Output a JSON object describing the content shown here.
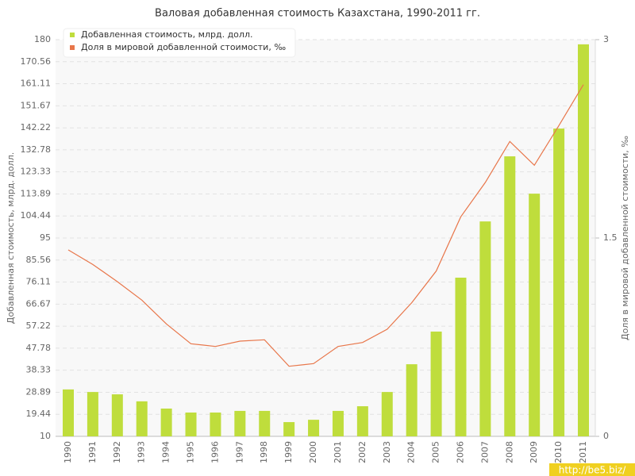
{
  "chart_data": {
    "type": "bar_line",
    "title": "Валовая добавленная стоимость Казахстана, 1990-2011 гг.",
    "y_label": "Добавленная стоимость, млрд. долл.",
    "y2_label": "Доля в мировой добавленной стоимости, ‰",
    "watermark": "http://be5.biz/",
    "categories": [
      "1990",
      "1991",
      "1992",
      "1993",
      "1994",
      "1995",
      "1996",
      "1997",
      "1998",
      "1999",
      "2000",
      "2001",
      "2002",
      "2003",
      "2004",
      "2005",
      "2006",
      "2007",
      "2008",
      "2009",
      "2010",
      "2011"
    ],
    "series": [
      {
        "name": "Добавленная стоимость, млрд. долл.",
        "color": "#bfdd3c",
        "type": "bar",
        "values": [
          30.1,
          29.0,
          28.0,
          25.0,
          21.9,
          20.2,
          20.2,
          20.9,
          20.9,
          16.1,
          17.1,
          20.9,
          22.9,
          29.0,
          40.9,
          54.9,
          78.0,
          102.1,
          130.0,
          114.0,
          141.9,
          178.0
        ]
      },
      {
        "name": "Доля в мировой добавленной стоимости, ‰",
        "color": "#e8764a",
        "type": "line",
        "axis": "y2",
        "values": [
          1.41,
          1.3,
          1.17,
          1.03,
          0.85,
          0.7,
          0.68,
          0.72,
          0.73,
          0.53,
          0.55,
          0.68,
          0.71,
          0.81,
          1.01,
          1.25,
          1.66,
          1.92,
          2.23,
          2.05,
          2.35,
          2.66
        ]
      }
    ],
    "ylim": [
      10,
      180
    ],
    "yticks": [
      10,
      19.44,
      28.89,
      38.33,
      47.78,
      57.22,
      66.67,
      76.11,
      85.56,
      95,
      104.44,
      113.89,
      123.33,
      132.78,
      142.22,
      151.67,
      161.11,
      170.56,
      180
    ],
    "y2lim": [
      0,
      3
    ],
    "y2ticks": [
      0,
      1.5,
      3
    ],
    "grid": true,
    "legend": "top-left"
  }
}
